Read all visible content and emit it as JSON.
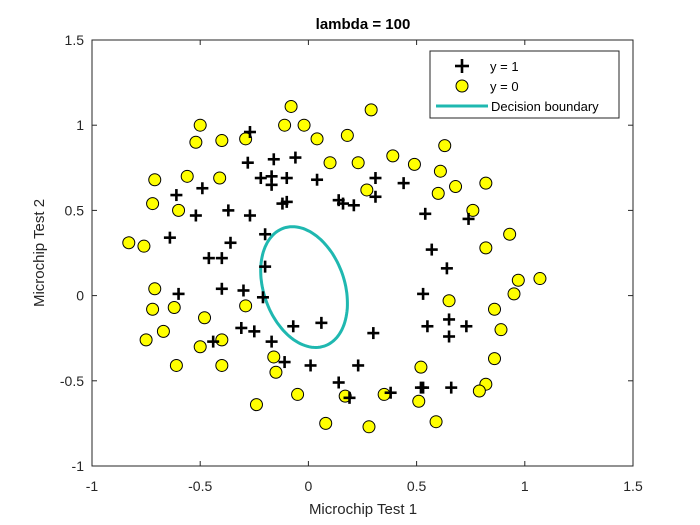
{
  "chart_data": {
    "type": "scatter",
    "title": "lambda = 100",
    "xlabel": "Microchip Test 1",
    "ylabel": "Microchip Test 2",
    "xlim": [
      -1,
      1.5
    ],
    "ylim": [
      -1,
      1.5
    ],
    "xticks": [
      -1,
      -0.5,
      0,
      0.5,
      1,
      1.5
    ],
    "xtick_labels": [
      "-1",
      "-0.5",
      "0",
      "0.5",
      "1",
      "1.5"
    ],
    "yticks": [
      -1,
      -0.5,
      0,
      0.5,
      1,
      1.5
    ],
    "ytick_labels": [
      "-1",
      "-0.5",
      "0",
      "0.5",
      "1",
      "1.5"
    ],
    "grid": false,
    "legend_position": "top-right",
    "colors": {
      "positive": "#000000",
      "negative_fill": "#ffff00",
      "negative_edge": "#000000",
      "boundary": "#1fb8b0"
    },
    "series": [
      {
        "name": "y = 1",
        "marker": "plus",
        "points": [
          [
            -0.28,
            0.78
          ],
          [
            -0.27,
            0.96
          ],
          [
            -0.16,
            0.8
          ],
          [
            -0.06,
            0.81
          ],
          [
            -0.22,
            0.69
          ],
          [
            -0.17,
            0.7
          ],
          [
            -0.1,
            0.69
          ],
          [
            -0.17,
            0.65
          ],
          [
            -0.1,
            0.55
          ],
          [
            -0.12,
            0.54
          ],
          [
            -0.27,
            0.47
          ],
          [
            -0.37,
            0.5
          ],
          [
            -0.49,
            0.63
          ],
          [
            -0.61,
            0.59
          ],
          [
            -0.52,
            0.47
          ],
          [
            -0.64,
            0.34
          ],
          [
            -0.4,
            0.22
          ],
          [
            -0.36,
            0.31
          ],
          [
            -0.2,
            0.36
          ],
          [
            -0.46,
            0.22
          ],
          [
            -0.2,
            0.17
          ],
          [
            0.04,
            0.68
          ],
          [
            0.14,
            0.56
          ],
          [
            0.16,
            0.54
          ],
          [
            0.21,
            0.53
          ],
          [
            0.31,
            0.69
          ],
          [
            0.31,
            0.58
          ],
          [
            0.44,
            0.66
          ],
          [
            0.54,
            0.48
          ],
          [
            0.57,
            0.27
          ],
          [
            0.64,
            0.16
          ],
          [
            0.74,
            0.45
          ],
          [
            -0.6,
            0.01
          ],
          [
            -0.4,
            0.04
          ],
          [
            -0.3,
            0.03
          ],
          [
            -0.21,
            -0.01
          ],
          [
            -0.31,
            -0.19
          ],
          [
            -0.25,
            -0.21
          ],
          [
            -0.07,
            -0.18
          ],
          [
            0.06,
            -0.16
          ],
          [
            -0.17,
            -0.27
          ],
          [
            -0.11,
            -0.39
          ],
          [
            0.01,
            -0.41
          ],
          [
            0.14,
            -0.51
          ],
          [
            0.19,
            -0.6
          ],
          [
            0.23,
            -0.41
          ],
          [
            0.3,
            -0.22
          ],
          [
            0.38,
            -0.57
          ],
          [
            0.53,
            -0.54
          ],
          [
            0.53,
            0.01
          ],
          [
            0.55,
            -0.18
          ],
          [
            0.65,
            -0.14
          ],
          [
            0.65,
            -0.24
          ],
          [
            0.66,
            -0.54
          ],
          [
            0.73,
            -0.18
          ],
          [
            0.52,
            -0.54
          ],
          [
            -0.44,
            -0.27
          ]
        ]
      },
      {
        "name": "y = 0",
        "marker": "circle",
        "points": [
          [
            -0.83,
            0.31
          ],
          [
            -0.76,
            0.29
          ],
          [
            -0.72,
            0.54
          ],
          [
            -0.71,
            0.68
          ],
          [
            -0.6,
            0.5
          ],
          [
            -0.56,
            0.7
          ],
          [
            -0.52,
            0.9
          ],
          [
            -0.5,
            1.0
          ],
          [
            -0.4,
            0.91
          ],
          [
            -0.41,
            0.69
          ],
          [
            -0.29,
            0.92
          ],
          [
            -0.11,
            1.0
          ],
          [
            -0.08,
            1.11
          ],
          [
            -0.02,
            1.0
          ],
          [
            0.04,
            0.92
          ],
          [
            0.1,
            0.78
          ],
          [
            0.18,
            0.94
          ],
          [
            0.23,
            0.78
          ],
          [
            0.27,
            0.62
          ],
          [
            0.29,
            1.09
          ],
          [
            0.39,
            0.82
          ],
          [
            0.49,
            0.77
          ],
          [
            0.6,
            0.6
          ],
          [
            0.61,
            0.73
          ],
          [
            0.63,
            0.88
          ],
          [
            0.68,
            0.64
          ],
          [
            0.76,
            0.5
          ],
          [
            0.82,
            0.66
          ],
          [
            0.82,
            0.28
          ],
          [
            0.93,
            0.36
          ],
          [
            0.97,
            0.09
          ],
          [
            0.95,
            0.01
          ],
          [
            1.07,
            0.1
          ],
          [
            0.86,
            -0.08
          ],
          [
            0.89,
            -0.2
          ],
          [
            0.86,
            -0.37
          ],
          [
            0.82,
            -0.52
          ],
          [
            0.79,
            -0.56
          ],
          [
            0.65,
            -0.03
          ],
          [
            0.59,
            -0.74
          ],
          [
            0.52,
            -0.42
          ],
          [
            0.51,
            -0.62
          ],
          [
            0.35,
            -0.58
          ],
          [
            0.28,
            -0.77
          ],
          [
            0.17,
            -0.59
          ],
          [
            0.08,
            -0.75
          ],
          [
            -0.05,
            -0.58
          ],
          [
            -0.15,
            -0.45
          ],
          [
            -0.16,
            -0.36
          ],
          [
            -0.24,
            -0.64
          ],
          [
            -0.29,
            -0.06
          ],
          [
            -0.4,
            -0.26
          ],
          [
            -0.48,
            -0.13
          ],
          [
            -0.5,
            -0.3
          ],
          [
            -0.61,
            -0.41
          ],
          [
            -0.62,
            -0.07
          ],
          [
            -0.67,
            -0.21
          ],
          [
            -0.72,
            -0.08
          ],
          [
            -0.71,
            0.04
          ],
          [
            -0.75,
            -0.26
          ],
          [
            -0.4,
            -0.41
          ]
        ]
      },
      {
        "name": "Decision boundary",
        "marker": "line",
        "boundary": {
          "center": [
            -0.02,
            0.05
          ],
          "semi_axes": [
            0.19,
            0.36
          ],
          "rotation_deg": 12
        }
      }
    ]
  }
}
